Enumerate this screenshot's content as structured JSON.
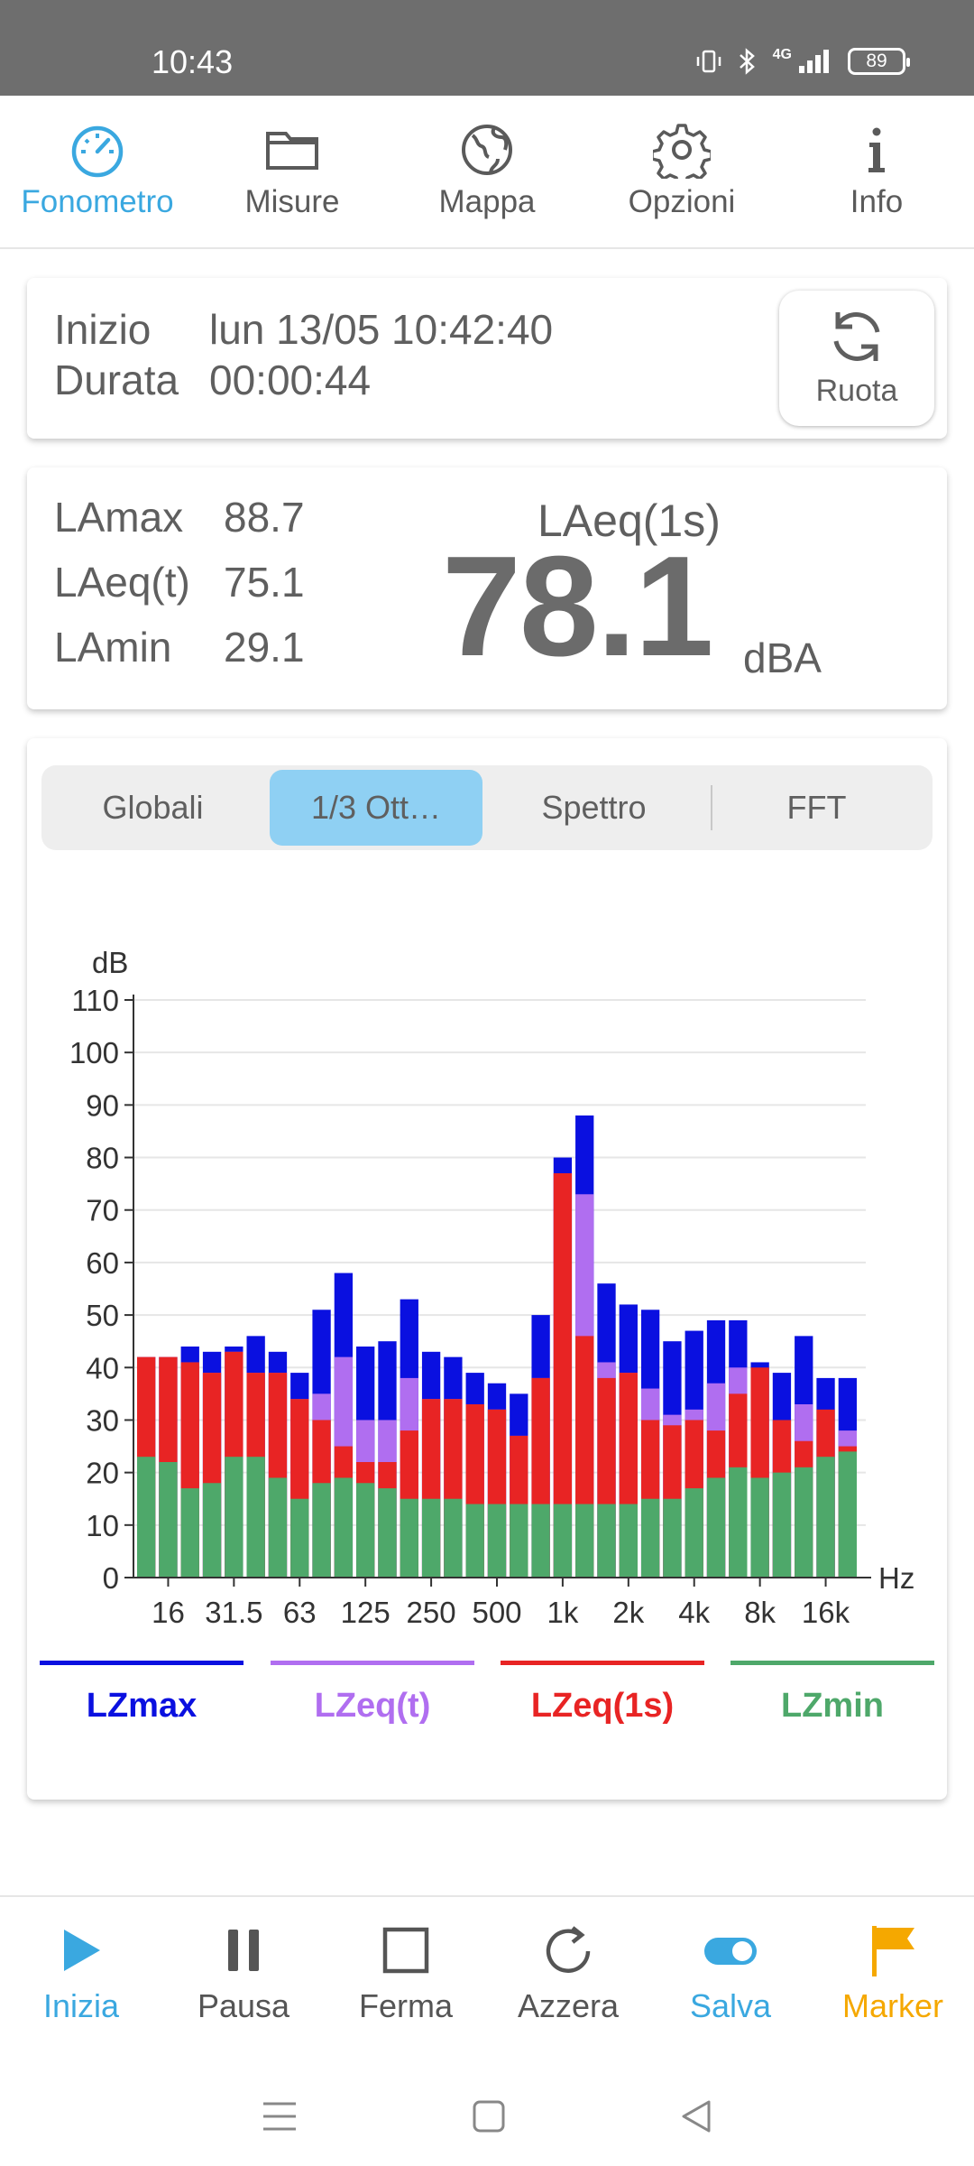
{
  "status": {
    "time": "10:43",
    "network": "4G",
    "battery": "89"
  },
  "topnav": [
    {
      "label": "Fonometro",
      "icon": "speedometer-icon",
      "active": true
    },
    {
      "label": "Misure",
      "icon": "folder-icon"
    },
    {
      "label": "Mappa",
      "icon": "globe-icon"
    },
    {
      "label": "Opzioni",
      "icon": "gear-icon"
    },
    {
      "label": "Info",
      "icon": "info-icon"
    }
  ],
  "session": {
    "start_label": "Inizio",
    "start_value": "lun 13/05 10:42:40",
    "duration_label": "Durata",
    "duration_value": "00:00:44",
    "rotate_label": "Ruota"
  },
  "levels": {
    "lamax_label": "LAmax",
    "lamax_value": "88.7",
    "laeqt_label": "LAeq(t)",
    "laeqt_value": "75.1",
    "lamin_label": "LAmin",
    "lamin_value": "29.1",
    "main_title": "LAeq(1s)",
    "main_value": "78.1",
    "main_unit": "dBA"
  },
  "tabs": [
    "Globali",
    "1/3 Ott…",
    "Spettro",
    "FFT"
  ],
  "active_tab": 1,
  "colors": {
    "accent": "#3aa8e0",
    "lzmax": "#0a10e0",
    "lzeqt": "#b06ef0",
    "lzeq1s": "#e82424",
    "lzmin": "#4ea86a",
    "marker": "#f5a800"
  },
  "chart_data": {
    "type": "bar",
    "ylabel": "dB",
    "xlabel": "Hz",
    "ylim": [
      0,
      110
    ],
    "yticks": [
      0,
      10,
      20,
      30,
      40,
      50,
      60,
      70,
      80,
      90,
      100,
      110
    ],
    "x_tick_labels": [
      "16",
      "31.5",
      "63",
      "125",
      "250",
      "500",
      "1k",
      "2k",
      "4k",
      "8k",
      "16k"
    ],
    "categories": [
      "12.5",
      "16",
      "20",
      "25",
      "31.5",
      "40",
      "50",
      "63",
      "80",
      "100",
      "125",
      "160",
      "200",
      "250",
      "315",
      "400",
      "500",
      "630",
      "800",
      "1k",
      "1.25k",
      "1.6k",
      "2k",
      "2.5k",
      "3.15k",
      "4k",
      "5k",
      "6.3k",
      "8k",
      "10k",
      "12.5k",
      "16k",
      "20k"
    ],
    "series": [
      {
        "name": "LZmax",
        "values": [
          42,
          42,
          44,
          43,
          44,
          46,
          43,
          39,
          51,
          58,
          44,
          45,
          53,
          43,
          42,
          39,
          37,
          35,
          50,
          80,
          88,
          56,
          52,
          51,
          45,
          47,
          49,
          49,
          41,
          39,
          46,
          38,
          38
        ]
      },
      {
        "name": "LZeq(t)",
        "values": [
          42,
          42,
          41,
          39,
          43,
          39,
          39,
          34,
          35,
          42,
          30,
          30,
          38,
          34,
          34,
          33,
          32,
          27,
          38,
          77,
          73,
          41,
          39,
          36,
          31,
          32,
          37,
          40,
          30,
          28,
          33,
          28,
          28
        ]
      },
      {
        "name": "LZeq(1s)",
        "values": [
          42,
          42,
          41,
          39,
          43,
          39,
          39,
          34,
          30,
          25,
          22,
          22,
          28,
          34,
          34,
          33,
          32,
          27,
          38,
          77,
          46,
          38,
          39,
          30,
          29,
          30,
          28,
          35,
          40,
          30,
          26,
          32,
          25
        ]
      },
      {
        "name": "LZmin",
        "values": [
          23,
          22,
          17,
          18,
          23,
          23,
          19,
          15,
          18,
          19,
          18,
          17,
          15,
          15,
          15,
          14,
          14,
          14,
          14,
          14,
          14,
          14,
          14,
          15,
          15,
          17,
          19,
          21,
          19,
          20,
          21,
          23,
          24
        ]
      }
    ]
  },
  "legend": [
    "LZmax",
    "LZeq(t)",
    "LZeq(1s)",
    "LZmin"
  ],
  "bottomnav": [
    {
      "label": "Inizia",
      "icon": "play-icon"
    },
    {
      "label": "Pausa",
      "icon": "pause-icon"
    },
    {
      "label": "Ferma",
      "icon": "stop-icon"
    },
    {
      "label": "Azzera",
      "icon": "reset-icon"
    },
    {
      "label": "Salva",
      "icon": "toggle-icon"
    },
    {
      "label": "Marker",
      "icon": "flag-icon"
    }
  ]
}
